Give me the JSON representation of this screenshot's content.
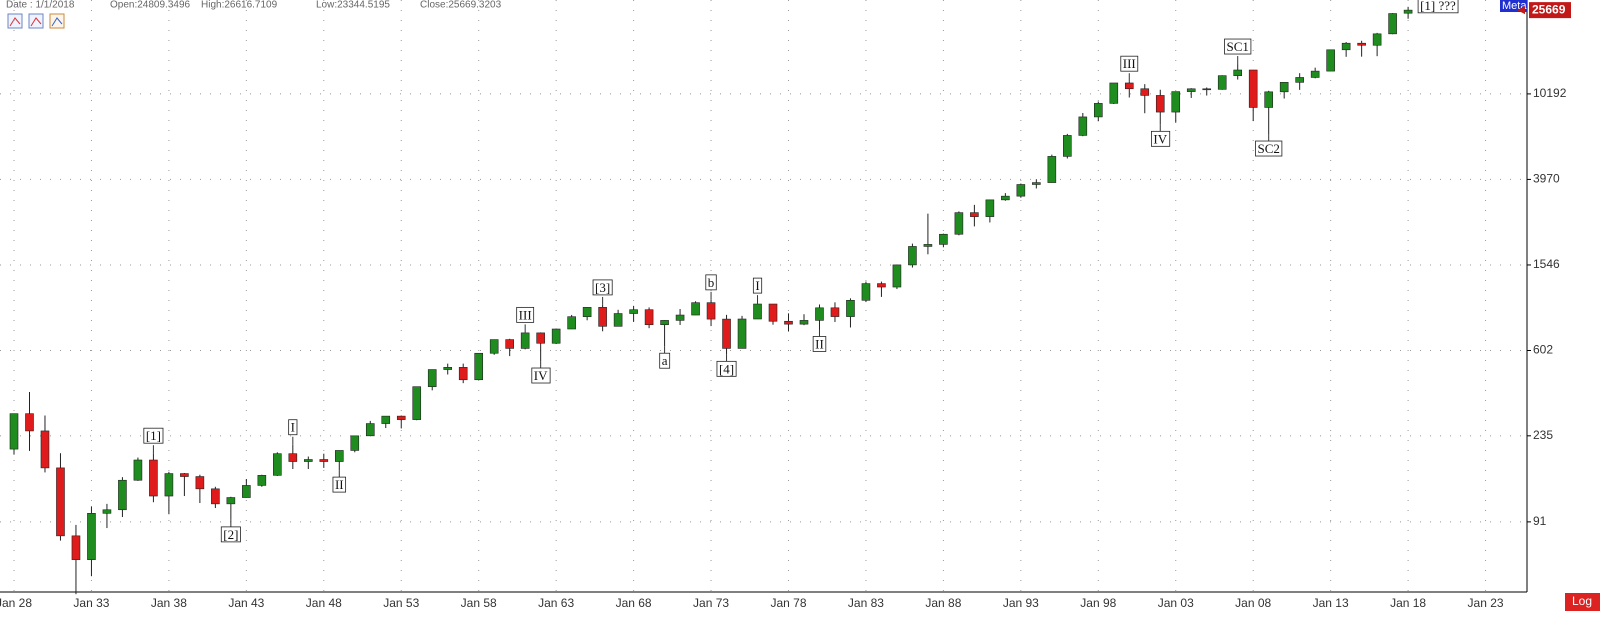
{
  "header": {
    "date": "Date : 1/1/2018",
    "open": "Open:24809.3496",
    "high": "High:26616.7109",
    "low": "Low:23344.5195",
    "close": "Close:25669.3203"
  },
  "ui": {
    "tag": "Meta",
    "last_price_label": "25669",
    "log_button": "Log"
  },
  "chart_data": {
    "type": "candlestick",
    "categories": [
      "Jan 28",
      null,
      null,
      null,
      null,
      "Jan 33",
      null,
      null,
      null,
      null,
      "Jan 38",
      null,
      null,
      null,
      null,
      "Jan 43",
      null,
      null,
      null,
      null,
      "Jan 48",
      null,
      null,
      null,
      null,
      "Jan 53",
      null,
      null,
      null,
      null,
      "Jan 58",
      null,
      null,
      null,
      null,
      "Jan 63",
      null,
      null,
      null,
      null,
      "Jan 68",
      null,
      null,
      null,
      null,
      "Jan 73",
      null,
      null,
      null,
      null,
      "Jan 78",
      null,
      null,
      null,
      null,
      "Jan 83",
      null,
      null,
      null,
      null,
      "Jan 88",
      null,
      null,
      null,
      null,
      "Jan 93",
      null,
      null,
      null,
      null,
      "Jan 98",
      null,
      null,
      null,
      null,
      "Jan 03",
      null,
      null,
      null,
      null,
      "Jan 08",
      null,
      null,
      null,
      null,
      "Jan 13",
      null,
      null,
      null,
      null,
      "Jan 18"
    ],
    "x_axis_end_label": "Jan 23",
    "open": [
      203,
      300,
      248,
      165,
      78,
      60,
      100,
      104,
      144,
      180,
      121,
      155,
      150,
      131,
      111,
      119,
      136,
      152,
      193,
      177,
      181,
      177,
      200,
      235,
      269,
      292,
      281,
      404,
      488,
      500,
      436,
      584,
      679,
      616,
      731,
      652,
      763,
      874,
      969,
      786,
      905,
      944,
      800,
      839,
      890,
      1020,
      851,
      616,
      852,
      1005,
      831,
      805,
      839,
      964,
      875,
      1047,
      1259,
      1212,
      1547,
      1896,
      1939,
      2169,
      2753,
      2634,
      3169,
      3301,
      3754,
      3834,
      5117,
      6448,
      7908,
      9181,
      11497,
      10787,
      10021,
      8342,
      10454,
      10783,
      10718,
      12463,
      13265,
      8776,
      10428,
      11578,
      12218,
      13104,
      16577,
      17823,
      17425,
      19763,
      24809.3496
    ],
    "high": [
      300,
      381,
      294,
      194,
      88,
      108,
      111,
      149,
      185,
      194,
      158,
      156,
      153,
      134,
      120,
      146,
      153,
      196,
      213,
      187,
      193,
      200,
      235,
      277,
      292,
      294,
      404,
      488,
      521,
      521,
      584,
      679,
      685,
      735,
      735,
      767,
      891,
      969,
      995,
      943,
      985,
      968,
      842,
      951,
      1036,
      1052,
      892,
      882,
      1015,
      1005,
      907,
      898,
      1000,
      1024,
      1070,
      1287,
      1287,
      1553,
      1956,
      2722,
      2183,
      2791,
      2999,
      3169,
      3413,
      3794,
      3978,
      5216,
      6560,
      8259,
      9374,
      11497,
      11723,
      11350,
      10673,
      10454,
      10855,
      10940,
      12510,
      14164,
      13279,
      10548,
      11585,
      12810,
      13610,
      16577,
      18053,
      18312,
      19975,
      24837,
      26616.7109
    ],
    "low": [
      191,
      199,
      157,
      74,
      41,
      50,
      85,
      96,
      143,
      113,
      99,
      121,
      112,
      106,
      93,
      119,
      134,
      151,
      163,
      163,
      165,
      161,
      196,
      235,
      256,
      255,
      279,
      388,
      462,
      420,
      436,
      574,
      566,
      610,
      536,
      647,
      763,
      840,
      744,
      786,
      825,
      770,
      631,
      798,
      889,
      788,
      577,
      616,
      852,
      800,
      742,
      796,
      759,
      824,
      776,
      1027,
      1087,
      1185,
      1502,
      1739,
      1879,
      2144,
      2365,
      2470,
      3137,
      3242,
      3593,
      3832,
      5000,
      6391,
      7539,
      9120,
      9796,
      8236,
      7286,
      7416,
      9750,
      10012,
      10668,
      11939,
      7552,
      6547,
      9686,
      10655,
      12101,
      13104,
      15340,
      15370,
      15451,
      19677,
      23344.5195
    ],
    "close": [
      300,
      248,
      165,
      78,
      60,
      100,
      104,
      144,
      180,
      121,
      155,
      150,
      131,
      111,
      119,
      136,
      152,
      193,
      177,
      181,
      177,
      200,
      235,
      269,
      292,
      281,
      404,
      488,
      500,
      436,
      584,
      679,
      616,
      731,
      652,
      763,
      874,
      969,
      786,
      905,
      944,
      800,
      839,
      890,
      1020,
      851,
      616,
      852,
      1005,
      831,
      805,
      839,
      964,
      875,
      1047,
      1259,
      1212,
      1547,
      1896,
      1939,
      2169,
      2753,
      2634,
      3169,
      3301,
      3754,
      3834,
      5117,
      6448,
      7908,
      9181,
      11497,
      10787,
      10021,
      8342,
      10454,
      10783,
      10718,
      12463,
      13265,
      8776,
      10428,
      11578,
      12218,
      13104,
      16577,
      17823,
      17425,
      19763,
      24719,
      25669.3203
    ],
    "up_color": "#1e8c1e",
    "down_color": "#e01b1b",
    "ylim": [
      42,
      28700
    ],
    "log_scale": true,
    "yticks": [
      91,
      235,
      602,
      1546,
      3970,
      10192
    ],
    "grid": true,
    "annotations": [
      "[1]",
      "[2]",
      "I",
      "II",
      "III",
      "IV",
      "[3]",
      "a",
      "b",
      "[4]",
      "I",
      "II",
      "III",
      "IV",
      "SC1",
      "SC2",
      "[1] ???"
    ]
  }
}
